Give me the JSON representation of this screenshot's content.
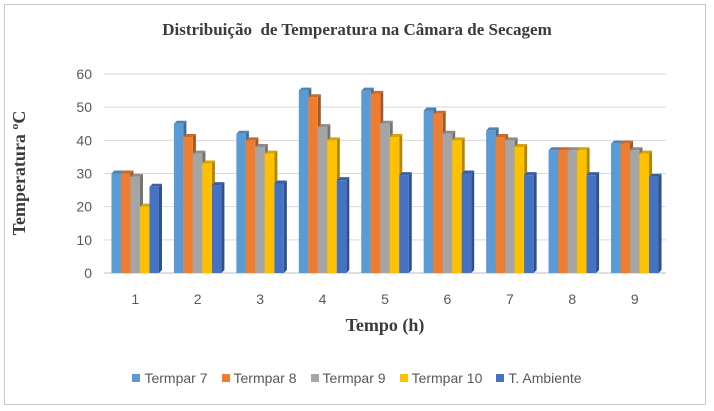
{
  "chart_data": {
    "type": "bar",
    "title": "Distribuição  de Temperatura na Câmara de Secagem",
    "xlabel": "Tempo (h)",
    "ylabel": "Temperatura ºC",
    "ylim": [
      0,
      60
    ],
    "yticks": [
      0,
      10,
      20,
      30,
      40,
      50,
      60
    ],
    "grid": true,
    "legend_position": "bottom",
    "categories": [
      "1",
      "2",
      "3",
      "4",
      "5",
      "6",
      "7",
      "8",
      "9"
    ],
    "series": [
      {
        "name": "Termpar 7",
        "color": "#5b9bd5",
        "values": [
          30,
          45,
          42,
          55,
          55,
          49,
          43,
          37,
          39
        ]
      },
      {
        "name": "Termpar 8",
        "color": "#ed7d31",
        "values": [
          30,
          41,
          40,
          53,
          54,
          48,
          41,
          37,
          39
        ]
      },
      {
        "name": "Termpar 9",
        "color": "#a5a5a5",
        "values": [
          29,
          36,
          38,
          44,
          45,
          42,
          40,
          37,
          37
        ]
      },
      {
        "name": "Termpar 10",
        "color": "#ffc000",
        "values": [
          20,
          33,
          36,
          40,
          41,
          40,
          38,
          37,
          36
        ]
      },
      {
        "name": "T. Ambiente",
        "color": "#4472c4",
        "values": [
          26,
          26.5,
          27,
          28,
          29.5,
          30,
          29.5,
          29.5,
          29
        ]
      }
    ]
  }
}
